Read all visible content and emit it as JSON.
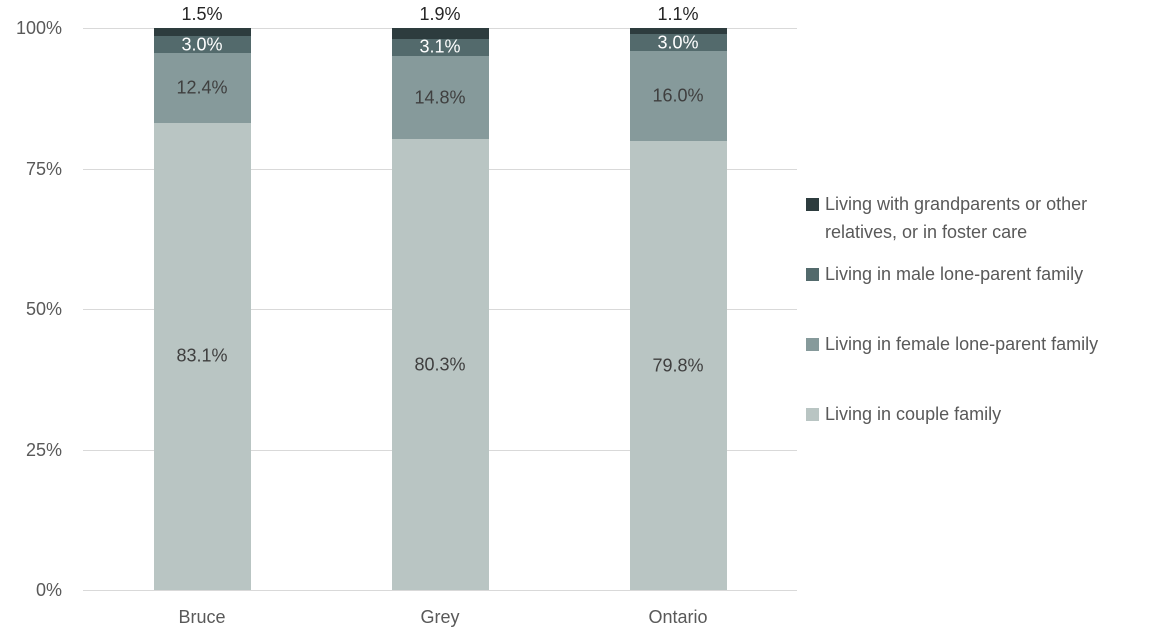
{
  "chart_data": {
    "type": "bar",
    "subtype": "stacked-100-percent",
    "title": "",
    "categories": [
      "Bruce",
      "Grey",
      "Ontario"
    ],
    "series": [
      {
        "name": "Living in couple family",
        "color": "#b9c5c3",
        "values": [
          83.1,
          80.3,
          79.8
        ],
        "labels": [
          "83.1%",
          "80.3%",
          "79.8%"
        ],
        "label_color": "#3f3f3f",
        "label_position": "inside"
      },
      {
        "name": "Living in female lone-parent family",
        "color": "#869a9b",
        "values": [
          12.4,
          14.8,
          16.0
        ],
        "labels": [
          "12.4%",
          "14.8%",
          "16.0%"
        ],
        "label_color": "#3f3f3f",
        "label_position": "inside"
      },
      {
        "name": "Living in male lone-parent family",
        "color": "#536a6c",
        "values": [
          3.0,
          3.1,
          3.0
        ],
        "labels": [
          "3.0%",
          "3.1%",
          "3.0%"
        ],
        "label_color": "#ffffff",
        "label_position": "inside"
      },
      {
        "name": "Living with grandparents or other relatives, or in foster care",
        "color": "#2d3c3e",
        "values": [
          1.5,
          1.9,
          1.1
        ],
        "labels": [
          "1.5%",
          "1.9%",
          "1.1%"
        ],
        "label_color": "#262626",
        "label_position": "above"
      }
    ],
    "y_axis": {
      "tick_labels": [
        "0%",
        "25%",
        "50%",
        "75%",
        "100%"
      ],
      "tick_values": [
        0,
        25,
        50,
        75,
        100
      ],
      "min": 0,
      "max": 100
    },
    "legend": {
      "position": "right",
      "order_top_to_bottom": [
        3,
        2,
        1,
        0
      ]
    },
    "grid": {
      "horizontal": true,
      "color": "#d9d9d9"
    },
    "text_color": "#595959",
    "background_color": "#ffffff"
  }
}
